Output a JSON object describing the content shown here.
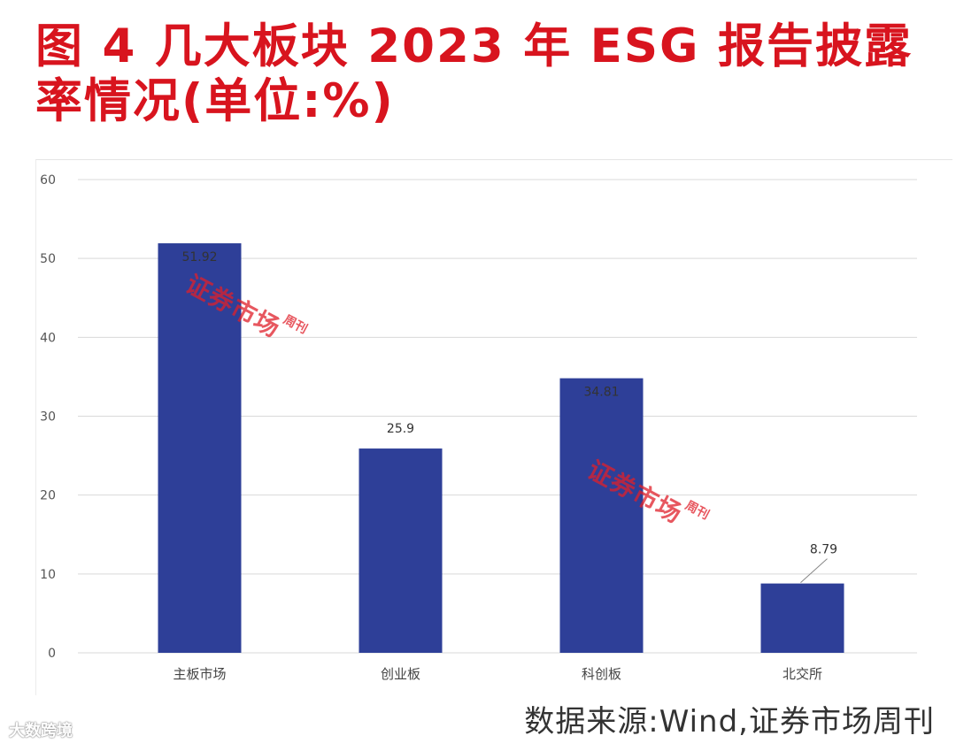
{
  "header": {
    "title": "图 4  几大板块 2023 年 ESG 报告披露率情况(单位:%)"
  },
  "chart_data": {
    "type": "bar",
    "categories": [
      "主板市场",
      "创业板",
      "科创板",
      "北交所"
    ],
    "values": [
      51.92,
      25.9,
      34.81,
      8.79
    ],
    "data_labels": [
      "51.92",
      "25.9",
      "34.81",
      "8.79"
    ],
    "y_ticks": [
      "0",
      "10",
      "20",
      "30",
      "40",
      "50",
      "60"
    ],
    "ylim": [
      0,
      60
    ],
    "grid": true,
    "bar_color": "#2e3f98",
    "title": "",
    "xlabel": "",
    "ylabel": ""
  },
  "footer": {
    "source": "数据来源:Wind,证券市场周刊",
    "logo": "大数跨境"
  },
  "watermark": {
    "main": "证券市场",
    "side": "周刊"
  }
}
